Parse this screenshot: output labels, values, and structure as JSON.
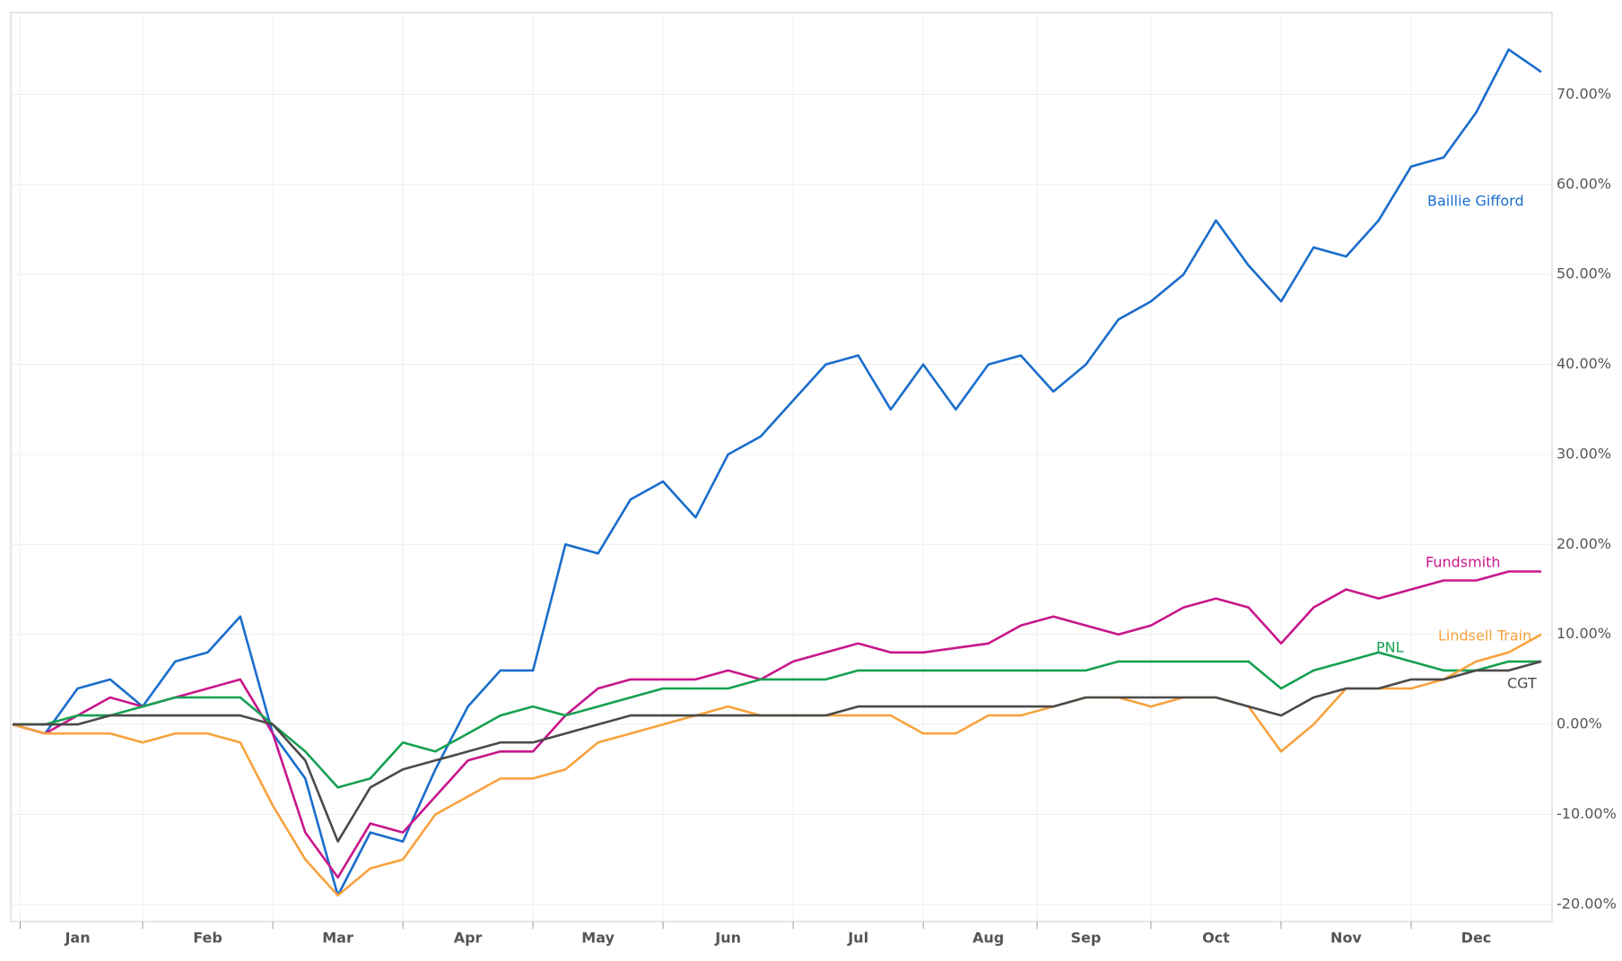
{
  "chart_data": {
    "type": "line",
    "categories": [
      null,
      null,
      "Jan",
      null,
      null,
      null,
      "Feb",
      null,
      null,
      null,
      "Mar",
      null,
      null,
      null,
      "Apr",
      null,
      null,
      null,
      "May",
      null,
      null,
      null,
      "Jun",
      null,
      null,
      null,
      "Jul",
      null,
      null,
      null,
      "Aug",
      null,
      null,
      "Sep",
      null,
      null,
      null,
      "Oct",
      null,
      null,
      null,
      "Nov",
      null,
      null,
      null,
      "Dec",
      null,
      null
    ],
    "series": [
      {
        "name": "Baillie Gifford",
        "color": "#1a6dcc",
        "values": [
          0,
          -1,
          4,
          5,
          2,
          7,
          8,
          12,
          -1,
          -6,
          -19,
          -12,
          -13,
          -5,
          2,
          6,
          6,
          20,
          19,
          25,
          27,
          23,
          30,
          32,
          36,
          40,
          41,
          35,
          40,
          35,
          40,
          41,
          37,
          40,
          45,
          47,
          50,
          56,
          51,
          47,
          53,
          52,
          56,
          62,
          63,
          68,
          75,
          72.5
        ]
      },
      {
        "name": "Fundsmith",
        "color": "#c8168c",
        "values": [
          0,
          -1,
          1,
          3,
          2,
          3,
          4,
          5,
          -1,
          -12,
          -17,
          -11,
          -12,
          -8,
          -4,
          -3,
          -3,
          1,
          4,
          5,
          5,
          5,
          6,
          5,
          7,
          8,
          9,
          8,
          8,
          8.5,
          9,
          11,
          12,
          11,
          10,
          11,
          13,
          14,
          13,
          9,
          13,
          15,
          14,
          15,
          16,
          16,
          17,
          17
        ]
      },
      {
        "name": "PNL",
        "color": "#16a050",
        "values": [
          0,
          0,
          1,
          1,
          2,
          3,
          3,
          3,
          0,
          -3,
          -7,
          -6,
          -2,
          -3,
          -1,
          1,
          2,
          1,
          2,
          3,
          4,
          4,
          4,
          5,
          5,
          5,
          6,
          6,
          6,
          6,
          6,
          6,
          6,
          6,
          7,
          7,
          7,
          7,
          7,
          4,
          6,
          7,
          8,
          7,
          6,
          6,
          7,
          7
        ]
      },
      {
        "name": "Lindsell Train",
        "color": "#f9a23e",
        "values": [
          0,
          -1,
          -1,
          -1,
          -2,
          -1,
          -1,
          -2,
          -9,
          -15,
          -19,
          -16,
          -15,
          -10,
          -8,
          -6,
          -6,
          -5,
          -2,
          -1,
          0,
          1,
          2,
          1,
          1,
          1,
          1,
          1,
          -1,
          -1,
          1,
          1,
          2,
          3,
          3,
          2,
          3,
          3,
          2,
          -3,
          0,
          4,
          4,
          4,
          5,
          7,
          8,
          10
        ]
      },
      {
        "name": "CGT",
        "color": "#4a4a4a",
        "values": [
          0,
          0,
          0,
          1,
          1,
          1,
          1,
          1,
          0,
          -4,
          -13,
          -7,
          -5,
          -4,
          -3,
          -2,
          -2,
          -1,
          0,
          1,
          1,
          1,
          1,
          1,
          1,
          1,
          2,
          2,
          2,
          2,
          2,
          2,
          2,
          3,
          3,
          3,
          3,
          3,
          2,
          1,
          3,
          4,
          4,
          5,
          5,
          6,
          6,
          7
        ]
      }
    ],
    "ylim": [
      -21.7,
      79.1
    ],
    "yticks": [
      {
        "value": -20,
        "label": "-20.00%"
      },
      {
        "value": -10,
        "label": "-10.00%"
      },
      {
        "value": 0,
        "label": "0.00%"
      },
      {
        "value": 10,
        "label": "10.00%"
      },
      {
        "value": 20,
        "label": "20.00%"
      },
      {
        "value": 30,
        "label": "30.00%"
      },
      {
        "value": 40,
        "label": "40.00%"
      },
      {
        "value": 50,
        "label": "50.00%"
      },
      {
        "value": 60,
        "label": "60.00%"
      },
      {
        "value": 70,
        "label": "70.00%"
      }
    ],
    "grid": true
  }
}
